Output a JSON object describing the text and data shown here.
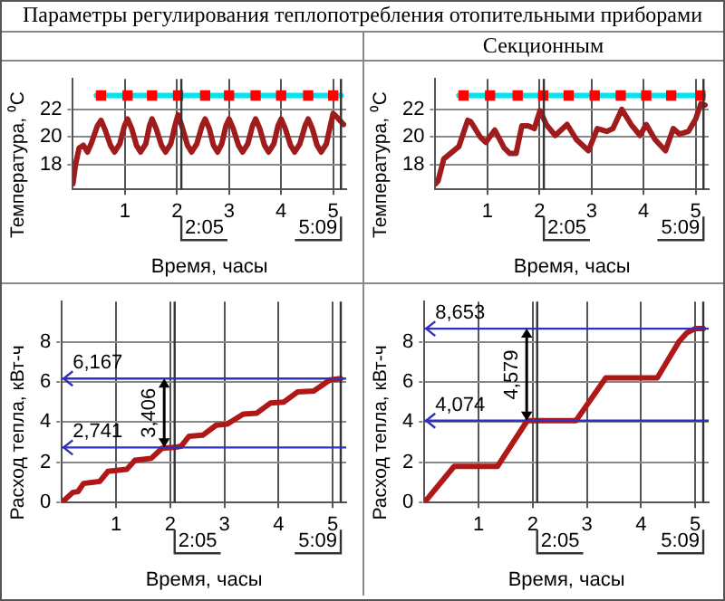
{
  "chart_data": [
    {
      "type": "line",
      "title": "Параметры регулирования теплопотребления отопительными приборами",
      "xlabel": "Время, часы",
      "ylabel": "Температура, ⁰С",
      "xlim": [
        0,
        5.25
      ],
      "ylim": [
        16.2,
        24.2
      ],
      "xticks": [
        1,
        2,
        3,
        4,
        5
      ],
      "yticks": [
        18,
        20,
        22
      ],
      "grid": true,
      "series": [
        {
          "type": "line",
          "color": "#00e5ee",
          "marker": "none",
          "x": [
            0.45,
            5.15
          ],
          "values": [
            23,
            23
          ]
        },
        {
          "type": "scatter",
          "color": "#ff0000",
          "marker": "square",
          "x": [
            0.54,
            1.05,
            1.52,
            2.02,
            2.54,
            3.0,
            3.51,
            4.0,
            4.52,
            5.0
          ],
          "values": [
            23,
            23,
            23,
            23,
            23,
            23,
            23,
            23,
            23,
            23
          ]
        },
        {
          "color": "#a01c1c",
          "marker": "none",
          "x": [
            0,
            0.05,
            0.12,
            0.2,
            0.28,
            0.36,
            0.47,
            0.54,
            0.62,
            0.72,
            0.8,
            0.9,
            0.99,
            1.05,
            1.13,
            1.22,
            1.3,
            1.4,
            1.47,
            1.52,
            1.6,
            1.7,
            1.78,
            1.88,
            1.96,
            2.02,
            2.1,
            2.2,
            2.28,
            2.38,
            2.48,
            2.54,
            2.62,
            2.7,
            2.78,
            2.86,
            2.94,
            3.0,
            3.08,
            3.18,
            3.26,
            3.36,
            3.45,
            3.51,
            3.59,
            3.68,
            3.76,
            3.86,
            3.94,
            4.0,
            4.08,
            4.18,
            4.26,
            4.36,
            4.46,
            4.52,
            4.6,
            4.69,
            4.77,
            4.87,
            4.95,
            5.0,
            5.08,
            5.2
          ],
          "values": [
            16.6,
            18.0,
            19.2,
            19.4,
            18.9,
            19.6,
            20.8,
            21.2,
            20.5,
            19.4,
            18.9,
            19.5,
            20.8,
            21.3,
            20.6,
            19.4,
            18.9,
            19.5,
            20.8,
            21.3,
            20.6,
            19.4,
            18.9,
            19.5,
            20.8,
            21.6,
            20.7,
            19.4,
            18.9,
            19.5,
            20.8,
            21.3,
            20.6,
            19.4,
            18.9,
            19.5,
            20.8,
            21.3,
            20.6,
            19.4,
            18.9,
            19.5,
            20.8,
            21.3,
            20.6,
            19.4,
            18.9,
            19.5,
            20.8,
            21.3,
            20.6,
            19.4,
            18.9,
            19.5,
            20.8,
            21.3,
            20.6,
            19.4,
            18.9,
            19.5,
            20.9,
            21.7,
            21.4,
            20.9
          ]
        }
      ],
      "ref_lines": [
        {
          "axis": "x",
          "value": 2.083,
          "label": "2:05",
          "color": "#333333"
        },
        {
          "axis": "x",
          "value": 5.15,
          "label": "5:09",
          "color": "#333333"
        }
      ]
    },
    {
      "type": "line",
      "subtitle": "Секционным",
      "xlabel": "Время, часы",
      "ylabel": "Температура, ⁰С",
      "xlim": [
        0,
        5.25
      ],
      "ylim": [
        16.2,
        24.2
      ],
      "xticks": [
        1,
        2,
        3,
        4,
        5
      ],
      "yticks": [
        18,
        20,
        22
      ],
      "grid": true,
      "series": [
        {
          "type": "line",
          "color": "#00e5ee",
          "marker": "none",
          "x": [
            0.45,
            5.15
          ],
          "values": [
            23,
            23
          ]
        },
        {
          "type": "scatter",
          "color": "#ff0000",
          "marker": "square",
          "x": [
            0.54,
            1.05,
            1.58,
            2.07,
            2.56,
            3.06,
            3.56,
            4.05,
            4.53,
            5.09
          ],
          "values": [
            23,
            23,
            23,
            23,
            23,
            23,
            23,
            23,
            23,
            23
          ]
        },
        {
          "color": "#a01c1c",
          "marker": "none",
          "x": [
            0,
            0.05,
            0.16,
            0.45,
            0.62,
            0.68,
            0.86,
            0.97,
            1.14,
            1.32,
            1.43,
            1.55,
            1.66,
            1.78,
            1.9,
            2.01,
            2.13,
            2.3,
            2.53,
            2.71,
            2.94,
            3.11,
            3.29,
            3.41,
            3.58,
            3.76,
            3.93,
            4.05,
            4.22,
            4.42,
            4.57,
            4.69,
            4.86,
            5.0,
            5.1,
            5.18
          ],
          "values": [
            16.6,
            16.8,
            18.4,
            19.3,
            21.2,
            21.1,
            20.0,
            19.6,
            20.5,
            19.2,
            18.8,
            18.8,
            20.8,
            20.8,
            20.6,
            21.9,
            20.9,
            20.1,
            20.9,
            19.8,
            19.0,
            20.6,
            20.4,
            20.6,
            22.0,
            20.9,
            20.1,
            20.9,
            19.8,
            19.0,
            20.6,
            20.2,
            20.4,
            21.3,
            22.4,
            22.3
          ]
        }
      ],
      "ref_lines": [
        {
          "axis": "x",
          "value": 2.083,
          "label": "2:05",
          "color": "#333333"
        },
        {
          "axis": "x",
          "value": 5.15,
          "label": "5:09",
          "color": "#333333"
        }
      ]
    },
    {
      "type": "line",
      "xlabel": "Время, часы",
      "ylabel": "Расход тепла, кВт-ч",
      "xlim": [
        0,
        5.25
      ],
      "ylim": [
        0,
        10
      ],
      "xticks": [
        1,
        2,
        3,
        4,
        5
      ],
      "yticks": [
        0,
        2,
        4,
        6,
        8
      ],
      "grid": true,
      "series": [
        {
          "color": "#b01818",
          "marker": "none",
          "x": [
            0,
            0.1,
            0.2,
            0.3,
            0.4,
            0.55,
            0.7,
            0.85,
            1.0,
            1.2,
            1.35,
            1.5,
            1.65,
            1.85,
            2.08,
            2.2,
            2.35,
            2.6,
            2.85,
            3.05,
            3.35,
            3.6,
            3.85,
            4.1,
            4.35,
            4.65,
            4.95,
            5.15
          ],
          "values": [
            0,
            0.25,
            0.5,
            0.55,
            0.95,
            1.0,
            1.05,
            1.55,
            1.6,
            1.65,
            2.1,
            2.15,
            2.2,
            2.7,
            2.741,
            2.8,
            3.3,
            3.35,
            3.85,
            3.9,
            4.4,
            4.45,
            4.95,
            5.0,
            5.5,
            5.55,
            6.1,
            6.167
          ]
        }
      ],
      "ref_lines": [
        {
          "axis": "x",
          "value": 2.083,
          "label": "2:05",
          "color": "#333333"
        },
        {
          "axis": "x",
          "value": 5.15,
          "label": "5:09",
          "color": "#333333"
        },
        {
          "axis": "y",
          "value": 6.167,
          "label": "6,167",
          "color": "#3030c0"
        },
        {
          "axis": "y",
          "value": 2.741,
          "label": "2,741",
          "color": "#3030c0"
        }
      ],
      "annotations": [
        "3,406"
      ]
    },
    {
      "type": "line",
      "xlabel": "Время, часы",
      "ylabel": "Расход тепла, кВт-ч",
      "xlim": [
        0,
        5.25
      ],
      "ylim": [
        0,
        10
      ],
      "xticks": [
        1,
        2,
        3,
        4,
        5
      ],
      "yticks": [
        0,
        2,
        4,
        6,
        8
      ],
      "grid": true,
      "series": [
        {
          "color": "#b01818",
          "marker": "none",
          "x": [
            0,
            0.55,
            1.35,
            1.9,
            2.8,
            3.35,
            4.3,
            4.5,
            4.7,
            4.85,
            5.0,
            5.15
          ],
          "values": [
            0,
            1.8,
            1.8,
            4.074,
            4.074,
            6.2,
            6.2,
            7.1,
            8.0,
            8.45,
            8.653,
            8.653
          ]
        }
      ],
      "ref_lines": [
        {
          "axis": "x",
          "value": 2.083,
          "label": "2:05",
          "color": "#333333"
        },
        {
          "axis": "x",
          "value": 5.15,
          "label": "5:09",
          "color": "#333333"
        },
        {
          "axis": "y",
          "value": 8.653,
          "label": "8,653",
          "color": "#3030c0"
        },
        {
          "axis": "y",
          "value": 4.074,
          "label": "4,074",
          "color": "#3030c0"
        }
      ],
      "annotations": [
        "4,579"
      ]
    }
  ]
}
